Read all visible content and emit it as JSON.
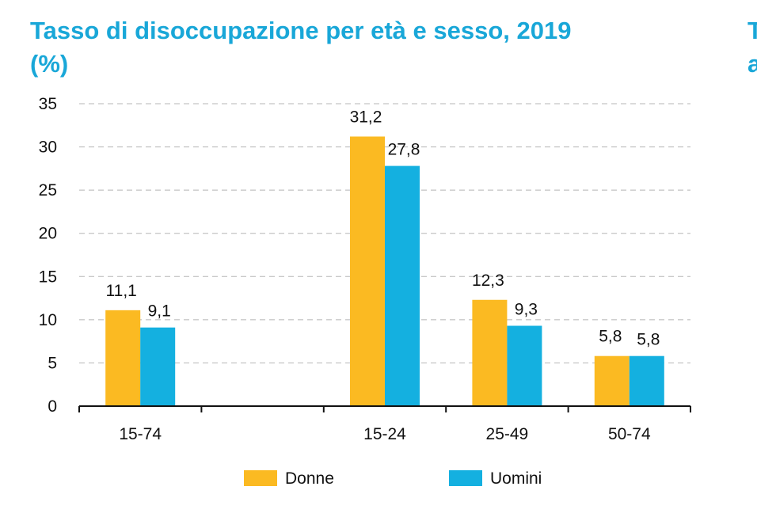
{
  "title": {
    "line1": "Tasso di disoccupazione per età e sesso, 2019",
    "line2": "(%)"
  },
  "clipped_neighbor_title": {
    "line1": "T",
    "line2": "a"
  },
  "colors": {
    "title": "#19a7d8",
    "donne": "#fbba22",
    "uomini": "#14b0e0",
    "grid": "#b5b5b5",
    "axis": "#111111"
  },
  "chart_data": {
    "type": "bar",
    "categories": [
      "15-74",
      "",
      "15-24",
      "25-49",
      "50-74"
    ],
    "series": [
      {
        "name": "Donne",
        "values": [
          11.1,
          null,
          31.2,
          12.3,
          5.8
        ],
        "labels": [
          "11,1",
          "",
          "31,2",
          "12,3",
          "5,8"
        ]
      },
      {
        "name": "Uomini",
        "values": [
          9.1,
          null,
          27.8,
          9.3,
          5.8
        ],
        "labels": [
          "9,1",
          "",
          "27,8",
          "9,3",
          "5,8"
        ]
      }
    ],
    "ylim": [
      0,
      35
    ],
    "yticks": [
      0,
      5,
      10,
      15,
      20,
      25,
      30,
      35
    ],
    "grid": true,
    "grid_style": "dashed",
    "legend_position": "bottom"
  }
}
